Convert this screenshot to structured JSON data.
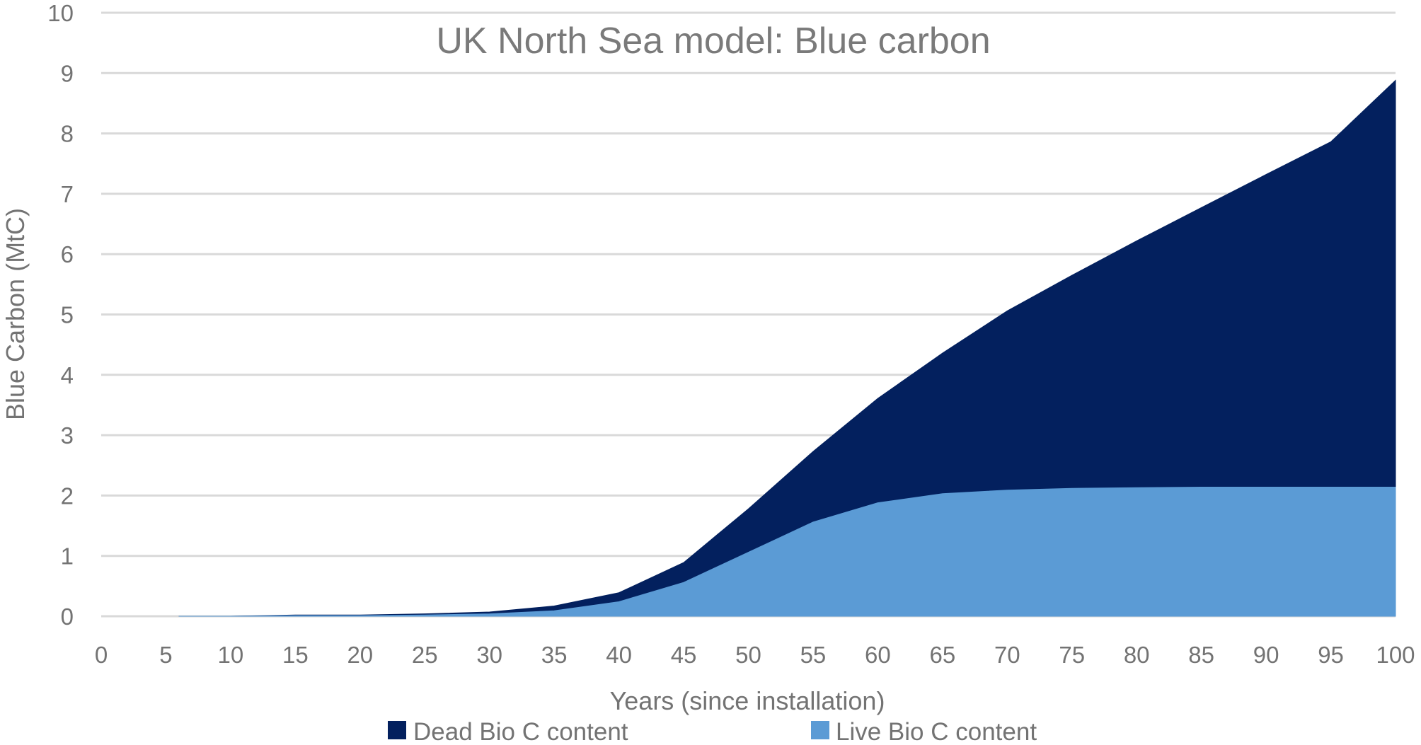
{
  "chart_data": {
    "type": "area",
    "stacked": true,
    "title": "UK North Sea model: Blue carbon",
    "xlabel": "Years (since installation)",
    "ylabel": "Blue Carbon (MtC)",
    "xlim": [
      0,
      100
    ],
    "ylim": [
      0,
      10
    ],
    "x_ticks": [
      "0",
      "5",
      "10",
      "15",
      "20",
      "25",
      "30",
      "35",
      "40",
      "45",
      "50",
      "55",
      "60",
      "65",
      "70",
      "75",
      "80",
      "85",
      "90",
      "95",
      "100"
    ],
    "y_ticks": [
      "0",
      "1",
      "2",
      "3",
      "4",
      "5",
      "6",
      "7",
      "8",
      "9",
      "10"
    ],
    "grid": "horizontal",
    "legend_position": "bottom",
    "x": [
      6,
      10,
      15,
      20,
      25,
      30,
      35,
      40,
      45,
      50,
      55,
      60,
      65,
      70,
      75,
      80,
      85,
      90,
      95,
      100
    ],
    "series": [
      {
        "name": "Live Bio C content",
        "color": "#5b9bd5",
        "values": [
          0.0,
          0.0,
          0.01,
          0.01,
          0.02,
          0.04,
          0.09,
          0.24,
          0.56,
          1.06,
          1.56,
          1.88,
          2.03,
          2.09,
          2.12,
          2.13,
          2.14,
          2.14,
          2.14,
          2.14
        ]
      },
      {
        "name": "Dead Bio C content",
        "color": "#03205e",
        "values": [
          0.0,
          0.0,
          0.01,
          0.01,
          0.02,
          0.03,
          0.08,
          0.15,
          0.33,
          0.72,
          1.17,
          1.73,
          2.33,
          2.97,
          3.53,
          4.09,
          4.63,
          5.18,
          5.72,
          6.74
        ]
      }
    ],
    "legend": [
      {
        "label": "Dead Bio C content",
        "color": "#03205e"
      },
      {
        "label": "Live Bio C content",
        "color": "#5b9bd5"
      }
    ]
  }
}
